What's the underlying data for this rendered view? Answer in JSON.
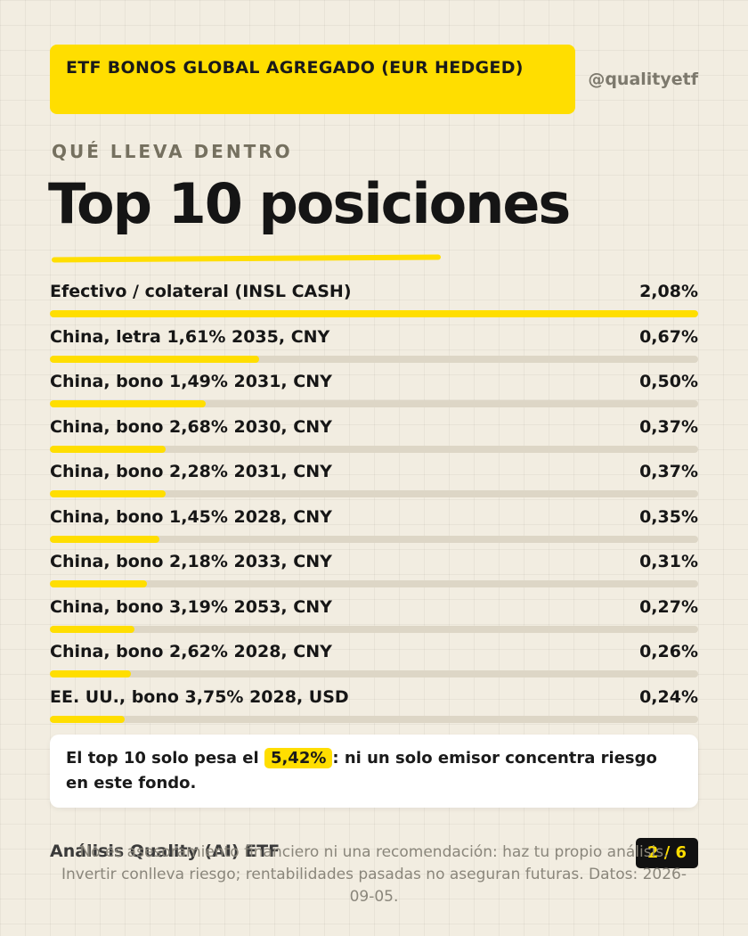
{
  "header": {
    "title": "ETF BONOS GLOBAL AGREGADO (EUR HEDGED)",
    "handle": "@qualityetf"
  },
  "kicker": "QUÉ LLEVA DENTRO",
  "title": "Top 10 posiciones",
  "positions": [
    {
      "name": "Efectivo / colateral (INSL CASH)",
      "value": "2,08%",
      "weight": 2.08
    },
    {
      "name": "China, letra 1,61% 2035, CNY",
      "value": "0,67%",
      "weight": 0.67
    },
    {
      "name": "China, bono 1,49% 2031, CNY",
      "value": "0,50%",
      "weight": 0.5
    },
    {
      "name": "China, bono 2,68% 2030, CNY",
      "value": "0,37%",
      "weight": 0.37
    },
    {
      "name": "China, bono 2,28% 2031, CNY",
      "value": "0,37%",
      "weight": 0.37
    },
    {
      "name": "China, bono 1,45% 2028, CNY",
      "value": "0,35%",
      "weight": 0.35
    },
    {
      "name": "China, bono 2,18% 2033, CNY",
      "value": "0,31%",
      "weight": 0.31
    },
    {
      "name": "China, bono 3,19% 2053, CNY",
      "value": "0,27%",
      "weight": 0.27
    },
    {
      "name": "China, bono 2,62% 2028, CNY",
      "value": "0,26%",
      "weight": 0.26
    },
    {
      "name": "EE. UU., bono 3,75% 2028, USD",
      "value": "0,24%",
      "weight": 0.24
    }
  ],
  "note": {
    "prefix": "El top 10 solo pesa el",
    "highlight": "5,42%",
    "suffix": ": ni un solo emisor concentra riesgo en este fondo."
  },
  "footer": {
    "left": "Análisis Quality (AI) ETF",
    "page": "2 / 6",
    "disclaimer": "No es asesoramiento financiero ni una recomendación: haz tu propio análisis. Invertir conlleva riesgo; rentabilidades pasadas no aseguran futuras. Datos: 2026-09-05."
  },
  "colors": {
    "accent": "#ffde00",
    "background": "#f2ede1",
    "track": "#ddd6c6"
  }
}
